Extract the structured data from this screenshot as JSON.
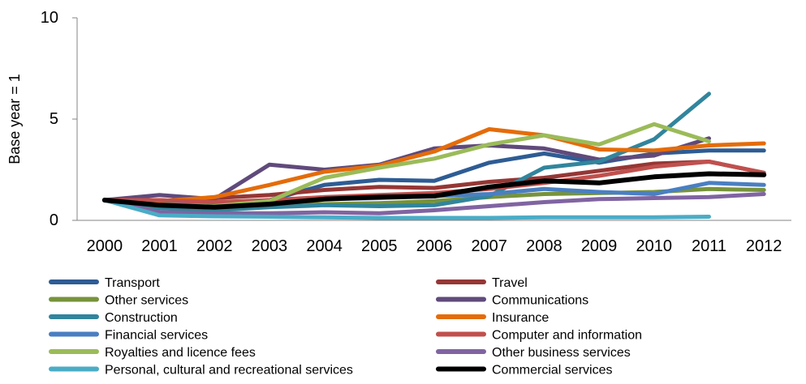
{
  "chart_data": {
    "type": "line",
    "ylabel": "Base year = 1",
    "xlabel": "",
    "title": "",
    "ylim": [
      0,
      10
    ],
    "yticks": [
      "0",
      "5",
      "10"
    ],
    "categories": [
      "2000",
      "2001",
      "2002",
      "2003",
      "2004",
      "2005",
      "2006",
      "2007",
      "2008",
      "2009",
      "2010",
      "2011",
      "2012"
    ],
    "grid": false,
    "legend_position": "bottom",
    "series": [
      {
        "name": "Transport",
        "color": "#2E5C94",
        "values": [
          1.0,
          0.9,
          0.75,
          1.0,
          1.75,
          2.0,
          1.95,
          2.85,
          3.3,
          2.85,
          3.3,
          3.45,
          3.45
        ]
      },
      {
        "name": "Travel",
        "color": "#953735",
        "values": [
          1.0,
          0.95,
          1.1,
          1.25,
          1.5,
          1.65,
          1.6,
          1.9,
          2.1,
          2.45,
          2.8,
          2.9,
          2.35
        ]
      },
      {
        "name": "Other services",
        "color": "#77933C",
        "values": [
          1.0,
          0.8,
          0.75,
          0.75,
          0.8,
          0.85,
          0.95,
          1.15,
          1.3,
          1.35,
          1.4,
          1.55,
          1.5
        ]
      },
      {
        "name": "Communications",
        "color": "#604A7B",
        "values": [
          1.0,
          1.25,
          1.05,
          2.75,
          2.5,
          2.75,
          3.55,
          3.7,
          3.55,
          3.0,
          3.2,
          4.05,
          null
        ]
      },
      {
        "name": "Construction",
        "color": "#31859C",
        "values": [
          1.0,
          0.6,
          0.5,
          0.65,
          0.75,
          0.7,
          0.75,
          1.2,
          2.6,
          2.9,
          4.0,
          6.25,
          null
        ]
      },
      {
        "name": "Insurance",
        "color": "#E46C0A",
        "values": [
          1.0,
          0.95,
          1.15,
          1.75,
          2.4,
          2.7,
          3.4,
          4.5,
          4.2,
          3.5,
          3.45,
          3.7,
          3.8
        ]
      },
      {
        "name": "Financial services",
        "color": "#4A7FC1",
        "values": [
          1.0,
          1.0,
          0.85,
          0.95,
          1.05,
          1.1,
          1.2,
          1.3,
          1.55,
          1.4,
          1.3,
          1.85,
          1.75
        ]
      },
      {
        "name": "Computer and information",
        "color": "#C0504D",
        "values": [
          1.0,
          1.0,
          0.9,
          1.0,
          1.15,
          1.25,
          1.35,
          1.55,
          1.85,
          2.2,
          2.65,
          2.9,
          2.35
        ]
      },
      {
        "name": "Royalties and licence fees",
        "color": "#9BBB59",
        "values": [
          1.0,
          0.75,
          0.7,
          0.95,
          2.1,
          2.6,
          3.05,
          3.75,
          4.2,
          3.75,
          4.75,
          3.9,
          null
        ]
      },
      {
        "name": "Other business services",
        "color": "#8064A2",
        "values": [
          1.0,
          0.4,
          0.35,
          0.35,
          0.4,
          0.35,
          0.5,
          0.7,
          0.9,
          1.05,
          1.1,
          1.15,
          1.3
        ]
      },
      {
        "name": "Personal, cultural and recreational services",
        "color": "#4BACC6",
        "values": [
          1.0,
          0.25,
          0.2,
          0.18,
          0.15,
          0.12,
          0.12,
          0.12,
          0.15,
          0.15,
          0.15,
          0.18,
          null
        ]
      },
      {
        "name": "Commercial services",
        "color": "#000000",
        "values": [
          1.0,
          0.75,
          0.65,
          0.8,
          1.05,
          1.15,
          1.2,
          1.65,
          1.95,
          1.85,
          2.15,
          2.3,
          2.25
        ]
      }
    ]
  }
}
